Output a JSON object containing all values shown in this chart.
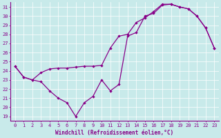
{
  "xlabel": "Windchill (Refroidissement éolien,°C)",
  "bg_color": "#c8eaea",
  "line_color": "#880088",
  "xlim": [
    -0.5,
    23.5
  ],
  "ylim": [
    18.5,
    31.5
  ],
  "yticks": [
    19,
    20,
    21,
    22,
    23,
    24,
    25,
    26,
    27,
    28,
    29,
    30,
    31
  ],
  "xticks": [
    0,
    1,
    2,
    3,
    4,
    5,
    6,
    7,
    8,
    9,
    10,
    11,
    12,
    13,
    14,
    15,
    16,
    17,
    18,
    19,
    20,
    21,
    22,
    23
  ],
  "series1_x": [
    0,
    1,
    2,
    3,
    4,
    5,
    6,
    7,
    8,
    9,
    10,
    11,
    12,
    13,
    14,
    15,
    16,
    17,
    18,
    19,
    20,
    21,
    22,
    23
  ],
  "series1_y": [
    24.5,
    23.3,
    23.0,
    22.8,
    21.8,
    21.0,
    20.5,
    19.0,
    20.5,
    21.2,
    23.0,
    21.8,
    22.5,
    27.8,
    28.2,
    30.0,
    30.3,
    31.2,
    31.3,
    31.0,
    30.8,
    30.0,
    28.7,
    26.5
  ],
  "series2_x": [
    0,
    1,
    2,
    3,
    4,
    5,
    6,
    7,
    8,
    9,
    10,
    11,
    12,
    13,
    14,
    15,
    16,
    17,
    18,
    19,
    20,
    21,
    22,
    23
  ],
  "series2_y": [
    24.5,
    23.3,
    23.0,
    23.8,
    24.2,
    24.3,
    24.3,
    24.4,
    24.5,
    24.5,
    24.6,
    26.5,
    27.8,
    28.0,
    29.3,
    29.8,
    30.5,
    31.3,
    31.3,
    31.0,
    30.8,
    30.0,
    28.7,
    26.5
  ]
}
